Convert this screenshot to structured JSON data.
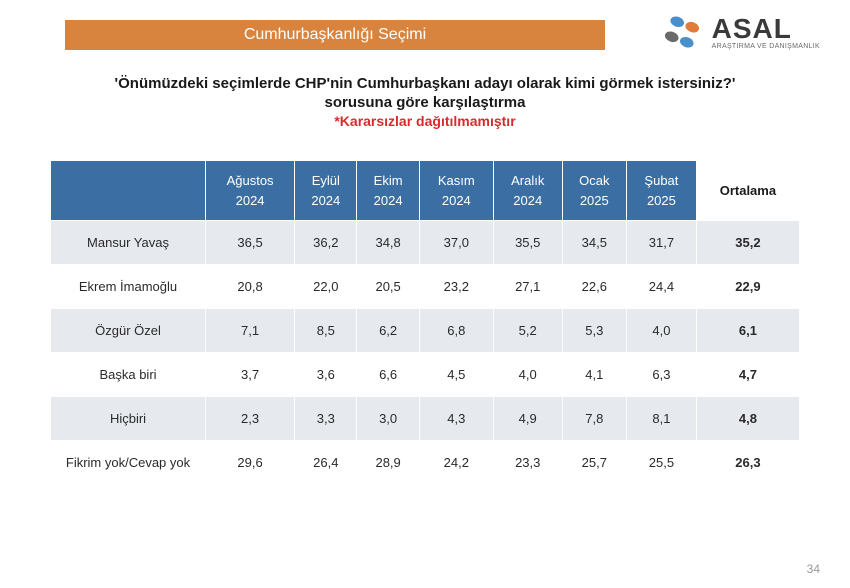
{
  "header": {
    "title": "Cumhurbaşkanlığı Seçimi",
    "bar_color": "#d8843e"
  },
  "logo": {
    "main": "ASAL",
    "sub": "ARAŞTIRMA VE DANIŞMANLIK",
    "dot_colors": [
      "#4a8fc9",
      "#e07b3c",
      "#6a6a6a",
      "#4a8fc9"
    ]
  },
  "question": {
    "line1": "'Önümüzdeki seçimlerde CHP'nin Cumhurbaşkanı adayı olarak kimi görmek istersiniz?'",
    "line2": "sorusuna göre karşılaştırma",
    "note": "*Kararsızlar dağıtılmamıştır",
    "note_color": "#d82b2b"
  },
  "table": {
    "header_bg": "#3b6fa3",
    "row_alt_bg": "#e6eaef",
    "columns": [
      "",
      "Ağustos\n2024",
      "Eylül\n2024",
      "Ekim\n2024",
      "Kasım\n2024",
      "Aralık\n2024",
      "Ocak\n2025",
      "Şubat\n2025",
      "Ortalama"
    ],
    "rows": [
      {
        "label": "Mansur Yavaş",
        "vals": [
          "36,5",
          "36,2",
          "34,8",
          "37,0",
          "35,5",
          "34,5",
          "31,7"
        ],
        "avg": "35,2"
      },
      {
        "label": "Ekrem İmamoğlu",
        "vals": [
          "20,8",
          "22,0",
          "20,5",
          "23,2",
          "27,1",
          "22,6",
          "24,4"
        ],
        "avg": "22,9"
      },
      {
        "label": "Özgür Özel",
        "vals": [
          "7,1",
          "8,5",
          "6,2",
          "6,8",
          "5,2",
          "5,3",
          "4,0"
        ],
        "avg": "6,1"
      },
      {
        "label": "Başka biri",
        "vals": [
          "3,7",
          "3,6",
          "6,6",
          "4,5",
          "4,0",
          "4,1",
          "6,3"
        ],
        "avg": "4,7"
      },
      {
        "label": "Hiçbiri",
        "vals": [
          "2,3",
          "3,3",
          "3,0",
          "4,3",
          "4,9",
          "7,8",
          "8,1"
        ],
        "avg": "4,8"
      },
      {
        "label": "Fikrim yok/Cevap yok",
        "vals": [
          "29,6",
          "26,4",
          "28,9",
          "24,2",
          "23,3",
          "25,7",
          "25,5"
        ],
        "avg": "26,3"
      }
    ]
  },
  "page_number": "34"
}
